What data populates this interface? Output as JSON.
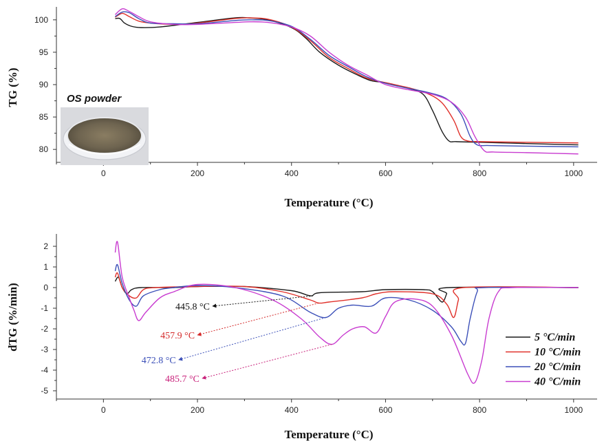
{
  "colors": {
    "axis": "#333333",
    "s5": "#1a1a1a",
    "s10": "#e0302a",
    "s20": "#3b4fb8",
    "s40": "#c83bd0",
    "annot5": "#111111",
    "annot10": "#d42a2a",
    "annot20": "#3b4fb8",
    "annot40": "#c8207a"
  },
  "legend": {
    "entries": [
      "5 °C/min",
      "10 °C/min",
      "20 °C/min",
      "40 °C/min"
    ],
    "position": "bottom-right"
  },
  "inset": {
    "title": "OS powder",
    "icon": "petri-dish-powder-photo"
  },
  "chart_data": [
    {
      "type": "line",
      "title": "",
      "xlabel": "Temperature  (°C)",
      "ylabel": "TG (%)",
      "xlim": [
        -100,
        1050
      ],
      "ylim": [
        78,
        102
      ],
      "xticks": [
        0,
        200,
        400,
        600,
        800,
        1000
      ],
      "yticks": [
        80,
        85,
        90,
        95,
        100
      ],
      "grid": false,
      "series": [
        {
          "name": "5 °C/min",
          "points": [
            [
              25,
              100.2
            ],
            [
              35,
              100.2
            ],
            [
              45,
              99.5
            ],
            [
              60,
              99.0
            ],
            [
              80,
              98.8
            ],
            [
              120,
              98.9
            ],
            [
              200,
              99.6
            ],
            [
              280,
              100.3
            ],
            [
              310,
              100.3
            ],
            [
              350,
              100.0
            ],
            [
              400,
              98.8
            ],
            [
              430,
              97.2
            ],
            [
              460,
              95.0
            ],
            [
              500,
              93.0
            ],
            [
              540,
              91.5
            ],
            [
              570,
              90.6
            ],
            [
              600,
              90.3
            ],
            [
              650,
              89.4
            ],
            [
              680,
              88.5
            ],
            [
              700,
              86.0
            ],
            [
              720,
              82.8
            ],
            [
              735,
              81.3
            ],
            [
              750,
              81.2
            ],
            [
              800,
              81.1
            ],
            [
              900,
              80.9
            ],
            [
              1010,
              80.7
            ]
          ]
        },
        {
          "name": "10 °C/min",
          "points": [
            [
              25,
              100.4
            ],
            [
              40,
              101.0
            ],
            [
              55,
              100.5
            ],
            [
              75,
              99.8
            ],
            [
              100,
              99.5
            ],
            [
              150,
              99.3
            ],
            [
              200,
              99.5
            ],
            [
              280,
              100.2
            ],
            [
              310,
              100.3
            ],
            [
              350,
              100.1
            ],
            [
              400,
              98.9
            ],
            [
              440,
              96.8
            ],
            [
              480,
              94.2
            ],
            [
              520,
              92.5
            ],
            [
              560,
              91.0
            ],
            [
              600,
              90.3
            ],
            [
              650,
              89.5
            ],
            [
              690,
              88.6
            ],
            [
              720,
              87.2
            ],
            [
              745,
              84.5
            ],
            [
              760,
              82.0
            ],
            [
              775,
              81.3
            ],
            [
              800,
              81.2
            ],
            [
              900,
              81.1
            ],
            [
              1010,
              81.0
            ]
          ]
        },
        {
          "name": "20 °C/min",
          "points": [
            [
              25,
              100.5
            ],
            [
              40,
              101.2
            ],
            [
              55,
              101.1
            ],
            [
              75,
              100.2
            ],
            [
              100,
              99.5
            ],
            [
              150,
              99.4
            ],
            [
              200,
              99.4
            ],
            [
              280,
              99.9
            ],
            [
              310,
              100.0
            ],
            [
              350,
              99.9
            ],
            [
              400,
              99.0
            ],
            [
              440,
              97.0
            ],
            [
              480,
              94.5
            ],
            [
              520,
              92.8
            ],
            [
              560,
              91.2
            ],
            [
              600,
              90.2
            ],
            [
              650,
              89.4
            ],
            [
              690,
              88.8
            ],
            [
              730,
              87.8
            ],
            [
              760,
              85.5
            ],
            [
              780,
              82.0
            ],
            [
              795,
              80.7
            ],
            [
              820,
              80.6
            ],
            [
              900,
              80.5
            ],
            [
              1010,
              80.4
            ]
          ]
        },
        {
          "name": "40 °C/min",
          "points": [
            [
              25,
              100.8
            ],
            [
              40,
              101.7
            ],
            [
              55,
              101.3
            ],
            [
              75,
              100.5
            ],
            [
              100,
              99.7
            ],
            [
              150,
              99.3
            ],
            [
              200,
              99.3
            ],
            [
              280,
              99.6
            ],
            [
              310,
              99.7
            ],
            [
              350,
              99.6
            ],
            [
              400,
              98.9
            ],
            [
              440,
              97.5
            ],
            [
              480,
              95.0
            ],
            [
              520,
              93.0
            ],
            [
              560,
              91.5
            ],
            [
              600,
              90.0
            ],
            [
              650,
              89.2
            ],
            [
              700,
              88.5
            ],
            [
              740,
              87.3
            ],
            [
              770,
              85.0
            ],
            [
              790,
              82.0
            ],
            [
              810,
              79.8
            ],
            [
              830,
              79.6
            ],
            [
              900,
              79.5
            ],
            [
              1010,
              79.3
            ]
          ]
        }
      ]
    },
    {
      "type": "line",
      "title": "",
      "xlabel": "Temperature  (°C)",
      "ylabel": "dTG (%/min)",
      "xlim": [
        -100,
        1050
      ],
      "ylim": [
        -5.4,
        2.6
      ],
      "xticks": [
        0,
        200,
        400,
        600,
        800,
        1000
      ],
      "yticks": [
        2,
        1,
        0,
        -1,
        -2,
        -3,
        -4,
        -5
      ],
      "grid": false,
      "series": [
        {
          "name": "5 °C/min",
          "points": [
            [
              25,
              0.3
            ],
            [
              32,
              0.5
            ],
            [
              40,
              0.0
            ],
            [
              50,
              -0.3
            ],
            [
              60,
              -0.1
            ],
            [
              80,
              0.0
            ],
            [
              150,
              0.0
            ],
            [
              200,
              0.05
            ],
            [
              300,
              0.05
            ],
            [
              400,
              -0.15
            ],
            [
              440,
              -0.4
            ],
            [
              460,
              -0.25
            ],
            [
              550,
              -0.2
            ],
            [
              600,
              -0.1
            ],
            [
              680,
              -0.1
            ],
            [
              700,
              -0.2
            ],
            [
              720,
              -0.7
            ],
            [
              730,
              -0.3
            ],
            [
              735,
              0.0
            ],
            [
              1010,
              0.0
            ]
          ]
        },
        {
          "name": "10 °C/min",
          "points": [
            [
              25,
              0.5
            ],
            [
              30,
              0.7
            ],
            [
              40,
              0.0
            ],
            [
              55,
              -0.4
            ],
            [
              70,
              -0.5
            ],
            [
              85,
              -0.1
            ],
            [
              110,
              0.0
            ],
            [
              200,
              0.05
            ],
            [
              300,
              0.05
            ],
            [
              380,
              -0.2
            ],
            [
              440,
              -0.6
            ],
            [
              458,
              -0.75
            ],
            [
              480,
              -0.7
            ],
            [
              550,
              -0.5
            ],
            [
              580,
              -0.3
            ],
            [
              620,
              -0.2
            ],
            [
              700,
              -0.3
            ],
            [
              730,
              -0.8
            ],
            [
              745,
              -1.45
            ],
            [
              755,
              -0.6
            ],
            [
              765,
              0.0
            ],
            [
              1010,
              0.0
            ]
          ]
        },
        {
          "name": "20 °C/min",
          "points": [
            [
              25,
              0.8
            ],
            [
              30,
              1.1
            ],
            [
              40,
              0.2
            ],
            [
              55,
              -0.6
            ],
            [
              70,
              -0.9
            ],
            [
              85,
              -0.4
            ],
            [
              120,
              -0.1
            ],
            [
              150,
              0.0
            ],
            [
              200,
              0.1
            ],
            [
              280,
              0.0
            ],
            [
              380,
              -0.4
            ],
            [
              440,
              -1.2
            ],
            [
              473,
              -1.45
            ],
            [
              500,
              -1.0
            ],
            [
              530,
              -0.85
            ],
            [
              570,
              -0.9
            ],
            [
              600,
              -0.5
            ],
            [
              650,
              -0.6
            ],
            [
              700,
              -1.1
            ],
            [
              740,
              -1.9
            ],
            [
              760,
              -2.6
            ],
            [
              770,
              -2.7
            ],
            [
              780,
              -1.5
            ],
            [
              795,
              -0.2
            ],
            [
              810,
              0.0
            ],
            [
              1010,
              0.0
            ]
          ]
        },
        {
          "name": "40 °C/min",
          "points": [
            [
              25,
              1.7
            ],
            [
              30,
              2.2
            ],
            [
              40,
              0.5
            ],
            [
              55,
              -0.5
            ],
            [
              65,
              -1.1
            ],
            [
              75,
              -1.6
            ],
            [
              90,
              -1.2
            ],
            [
              120,
              -0.5
            ],
            [
              150,
              -0.2
            ],
            [
              200,
              0.15
            ],
            [
              280,
              0.0
            ],
            [
              360,
              -0.6
            ],
            [
              420,
              -1.5
            ],
            [
              460,
              -2.4
            ],
            [
              486,
              -2.75
            ],
            [
              510,
              -2.3
            ],
            [
              530,
              -2.0
            ],
            [
              555,
              -1.9
            ],
            [
              580,
              -2.2
            ],
            [
              600,
              -1.4
            ],
            [
              620,
              -0.7
            ],
            [
              660,
              -0.55
            ],
            [
              700,
              -0.9
            ],
            [
              740,
              -2.3
            ],
            [
              775,
              -4.2
            ],
            [
              790,
              -4.6
            ],
            [
              805,
              -3.5
            ],
            [
              820,
              -1.5
            ],
            [
              840,
              -0.2
            ],
            [
              870,
              0.0
            ],
            [
              1010,
              0.0
            ]
          ]
        }
      ],
      "annotations": [
        {
          "text": "445.8 °C",
          "peak": [
            445.8,
            -0.4
          ],
          "label_pos": [
            232,
            -0.9
          ],
          "series": "5 °C/min"
        },
        {
          "text": "457.9 °C",
          "peak": [
            457.9,
            -0.75
          ],
          "label_pos": [
            200,
            -2.3
          ],
          "series": "10 °C/min"
        },
        {
          "text": "472.8 °C",
          "peak": [
            472.8,
            -1.45
          ],
          "label_pos": [
            160,
            -3.5
          ],
          "series": "20 °C/min"
        },
        {
          "text": "485.7 °C",
          "peak": [
            485.7,
            -2.75
          ],
          "label_pos": [
            210,
            -4.4
          ],
          "series": "40 °C/min"
        }
      ]
    }
  ]
}
